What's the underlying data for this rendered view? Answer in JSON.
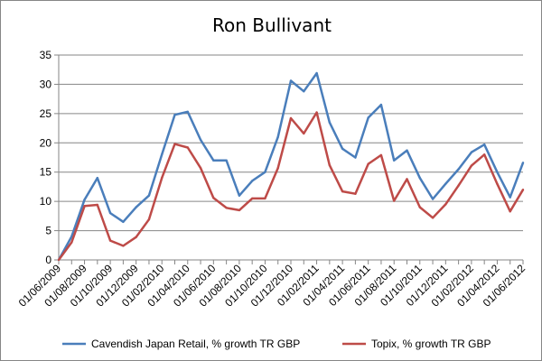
{
  "chart_data": {
    "type": "line",
    "title": "Ron Bullivant",
    "xlabel": "",
    "ylabel": "",
    "ylim": [
      0,
      35
    ],
    "yticks": [
      0,
      5,
      10,
      15,
      20,
      25,
      30,
      35
    ],
    "grid": "horizontal",
    "legend": "bottom",
    "x": [
      "01/06/2009",
      "01/07/2009",
      "01/08/2009",
      "01/09/2009",
      "01/10/2009",
      "01/11/2009",
      "01/12/2009",
      "01/01/2010",
      "01/02/2010",
      "01/03/2010",
      "01/04/2010",
      "01/05/2010",
      "01/06/2010",
      "01/07/2010",
      "01/08/2010",
      "01/09/2010",
      "01/10/2010",
      "01/11/2010",
      "01/12/2010",
      "01/01/2011",
      "01/02/2011",
      "01/03/2011",
      "01/04/2011",
      "01/05/2011",
      "01/06/2011",
      "01/07/2011",
      "01/08/2011",
      "01/09/2011",
      "01/10/2011",
      "01/11/2011",
      "01/12/2011",
      "01/01/2012",
      "01/02/2012",
      "01/03/2012",
      "01/04/2012",
      "01/05/2012",
      "01/06/2012"
    ],
    "x_tick_labels": [
      "01/06/2009",
      "01/08/2009",
      "01/10/2009",
      "01/12/2009",
      "01/02/2010",
      "01/04/2010",
      "01/06/2010",
      "01/08/2010",
      "01/10/2010",
      "01/12/2010",
      "01/02/2011",
      "01/04/2011",
      "01/06/2011",
      "01/08/2011",
      "01/10/2011",
      "01/12/2011",
      "01/02/2012",
      "01/04/2012",
      "01/06/2012"
    ],
    "series": [
      {
        "name": "Cavendish Japan Retail, % growth TR GBP",
        "color": "#4a7ebb",
        "values": [
          0,
          4,
          10.3,
          14,
          8,
          6.5,
          9,
          11,
          18,
          24.8,
          25.3,
          20.5,
          17,
          17,
          11,
          13.5,
          15,
          21,
          30.6,
          28.8,
          31.9,
          23.5,
          19,
          17.5,
          24.3,
          26.5,
          17,
          18.7,
          14,
          10.4,
          13,
          15.5,
          18.4,
          19.7,
          15,
          10.7,
          16.6
        ]
      },
      {
        "name": "Topix, % growth TR GBP",
        "color": "#be4b48",
        "values": [
          0,
          3,
          9.2,
          9.4,
          3.3,
          2.4,
          3.9,
          6.9,
          14,
          19.8,
          19.2,
          15.7,
          10.6,
          8.9,
          8.5,
          10.5,
          10.5,
          15.7,
          24.2,
          21.6,
          25.2,
          16.2,
          11.7,
          11.3,
          16.4,
          17.9,
          10.1,
          13.8,
          9,
          7.2,
          9.5,
          12.7,
          16.1,
          18,
          13,
          8.3,
          12
        ]
      }
    ]
  }
}
